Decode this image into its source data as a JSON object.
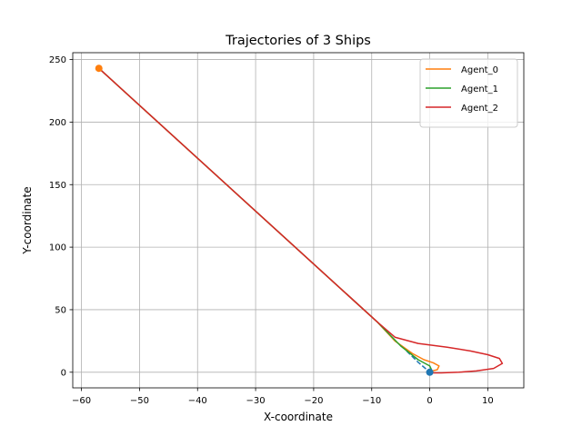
{
  "chart_data": {
    "type": "line",
    "title": "Trajectories of 3 Ships",
    "xlabel": "X-coordinate",
    "ylabel": "Y-coordinate",
    "xlim": [
      -61.5,
      16.2
    ],
    "ylim": [
      -12.5,
      255.5
    ],
    "xticks": [
      -60,
      -50,
      -40,
      -30,
      -20,
      -10,
      0,
      10
    ],
    "xtick_labels": [
      "−60",
      "−50",
      "−40",
      "−30",
      "−20",
      "−10",
      "0",
      "10"
    ],
    "yticks": [
      0,
      50,
      100,
      150,
      200,
      250
    ],
    "ytick_labels": [
      "0",
      "50",
      "100",
      "150",
      "200",
      "250"
    ],
    "grid": true,
    "legend_position": "top-right",
    "series": [
      {
        "name": "Agent_0",
        "color": "#ff7f0e",
        "x": [
          -57,
          -9,
          -6,
          -3,
          -1,
          0.6,
          1.6,
          1.3,
          0,
          -0.5
        ],
        "y": [
          243,
          40,
          25,
          15,
          10,
          7.5,
          5,
          2,
          0.5,
          0.2
        ]
      },
      {
        "name": "Agent_1",
        "color": "#2ca02c",
        "x": [
          -57,
          -9,
          -5,
          -2,
          0,
          0.3,
          0.1
        ],
        "y": [
          243,
          40,
          21,
          10,
          5,
          2,
          0.5
        ]
      },
      {
        "name": "Agent_2",
        "color": "#d62728",
        "x": [
          -57,
          -9,
          -6,
          -2,
          3,
          7,
          10,
          12,
          12.5,
          11,
          8,
          5,
          2,
          0,
          -0.5
        ],
        "y": [
          243,
          40,
          28,
          23,
          20,
          17,
          14,
          11,
          7,
          3,
          1,
          0,
          -0.5,
          -0.5,
          0
        ]
      }
    ],
    "extra_traces": [
      {
        "color": "#1f77b4",
        "dashed": true,
        "x": [
          -4,
          -2,
          -0.5,
          0
        ],
        "y": [
          17,
          8,
          2,
          0
        ]
      }
    ],
    "markers": [
      {
        "color": "#ff7f0e",
        "x": -57,
        "y": 243
      },
      {
        "color": "#1f77b4",
        "x": 0,
        "y": 0
      }
    ]
  }
}
